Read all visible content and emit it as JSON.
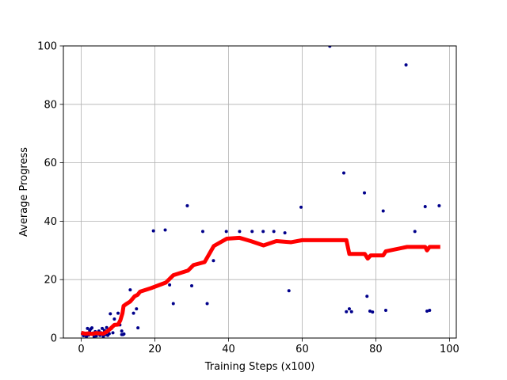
{
  "chart_data": {
    "type": "scatter",
    "title": "",
    "xlabel": "Training Steps (x100)",
    "ylabel": "Average Progress",
    "xlim": [
      -4.85,
      101.85
    ],
    "ylim": [
      0,
      100
    ],
    "xticks": [
      0,
      20,
      40,
      60,
      80,
      100
    ],
    "yticks": [
      0,
      20,
      40,
      60,
      80,
      100
    ],
    "grid": true,
    "legend": "none",
    "series": [
      {
        "kind": "scatter",
        "color": "#00008b",
        "points": [
          [
            0.3,
            1.5
          ],
          [
            0.6,
            0.8
          ],
          [
            1.0,
            1.2
          ],
          [
            1.4,
            0.5
          ],
          [
            1.7,
            3.3
          ],
          [
            2.0,
            1.0
          ],
          [
            2.3,
            2.5
          ],
          [
            2.6,
            3.1
          ],
          [
            2.9,
            3.5
          ],
          [
            3.2,
            1.7
          ],
          [
            3.5,
            0.4
          ],
          [
            3.8,
            2.2
          ],
          [
            4.1,
            0.7
          ],
          [
            4.5,
            1.5
          ],
          [
            4.8,
            2.4
          ],
          [
            5.1,
            0.9
          ],
          [
            5.4,
            1.8
          ],
          [
            5.7,
            3.3
          ],
          [
            6.0,
            0.5
          ],
          [
            6.3,
            2.6
          ],
          [
            6.6,
            1.2
          ],
          [
            6.9,
            3.6
          ],
          [
            7.2,
            0.9
          ],
          [
            7.6,
            1.5
          ],
          [
            7.9,
            8.3
          ],
          [
            8.2,
            3.3
          ],
          [
            8.6,
            1.8
          ],
          [
            9.0,
            6.5
          ],
          [
            9.5,
            4.5
          ],
          [
            10.0,
            8.5
          ],
          [
            10.5,
            4.5
          ],
          [
            11.0,
            2.4
          ],
          [
            11.0,
            1.2
          ],
          [
            11.3,
            1.2
          ],
          [
            11.6,
            1.4
          ],
          [
            13.3,
            16.5
          ],
          [
            14.2,
            8.5
          ],
          [
            15.0,
            10.0
          ],
          [
            15.4,
            3.5
          ],
          [
            19.6,
            36.7
          ],
          [
            22.8,
            37.0
          ],
          [
            24.0,
            18.2
          ],
          [
            25.0,
            11.8
          ],
          [
            28.8,
            45.3
          ],
          [
            30.0,
            17.9
          ],
          [
            33.0,
            36.5
          ],
          [
            34.2,
            11.8
          ],
          [
            35.9,
            26.5
          ],
          [
            39.4,
            36.5
          ],
          [
            43.0,
            36.5
          ],
          [
            46.4,
            36.5
          ],
          [
            49.4,
            36.5
          ],
          [
            52.3,
            36.5
          ],
          [
            55.3,
            36.0
          ],
          [
            56.4,
            16.2
          ],
          [
            59.7,
            44.8
          ],
          [
            67.5,
            99.9
          ],
          [
            71.3,
            56.5
          ],
          [
            72.0,
            9.0
          ],
          [
            72.8,
            10.0
          ],
          [
            73.4,
            9.0
          ],
          [
            76.9,
            49.7
          ],
          [
            77.6,
            14.3
          ],
          [
            78.4,
            9.2
          ],
          [
            79.1,
            8.9
          ],
          [
            82.0,
            43.5
          ],
          [
            82.7,
            9.5
          ],
          [
            88.2,
            93.5
          ],
          [
            90.6,
            36.5
          ],
          [
            93.4,
            45.0
          ],
          [
            93.9,
            9.2
          ],
          [
            94.6,
            9.5
          ],
          [
            97.2,
            45.3
          ]
        ]
      },
      {
        "kind": "line",
        "color": "#ff0000",
        "x": [
          0,
          1,
          2,
          3,
          4,
          5,
          6,
          7,
          8,
          9,
          10,
          10.6,
          11.2,
          11.5,
          12.4,
          13.3,
          14.5,
          15.3,
          16.0,
          19.0,
          23.0,
          25.0,
          29.0,
          30.5,
          33.5,
          36.0,
          39.5,
          43.0,
          46.0,
          49.5,
          53.0,
          57.0,
          60.0,
          64.0,
          68.0,
          72.0,
          72.8,
          77.0,
          77.8,
          78.6,
          82.0,
          82.7,
          88.5,
          93.4,
          93.9,
          94.6,
          97.5
        ],
        "y": [
          1.8,
          1.5,
          1.6,
          1.4,
          1.7,
          1.6,
          1.5,
          2.2,
          3.3,
          4.5,
          4.6,
          6.0,
          8.5,
          11.0,
          11.8,
          12.5,
          14.3,
          14.8,
          15.9,
          17.1,
          19.0,
          21.5,
          23.1,
          25.0,
          26.0,
          31.5,
          34.0,
          34.3,
          33.2,
          31.7,
          33.2,
          32.8,
          33.5,
          33.5,
          33.5,
          33.5,
          28.8,
          28.8,
          27.2,
          28.3,
          28.3,
          29.7,
          31.2,
          31.2,
          30.0,
          31.2,
          31.2
        ]
      }
    ]
  }
}
